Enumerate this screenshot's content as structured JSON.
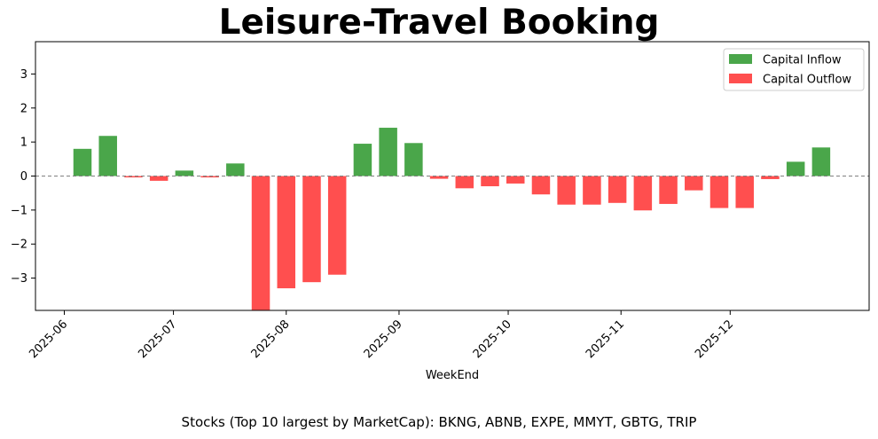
{
  "title": "Leisure-Travel Booking",
  "footnote": "Stocks (Top 10 largest by MarketCap): BKNG, ABNB, EXPE, MMYT, GBTG, TRIP",
  "colors": {
    "inflow": "#4aa64a",
    "outflow": "#ff4f4f",
    "zero_line": "#808080"
  },
  "chart_data": {
    "type": "bar",
    "title": "Leisure-Travel Booking",
    "xlabel": "WeekEnd",
    "ylabel": "",
    "ylim": [
      -3.95,
      3.95
    ],
    "yticks": [
      -3,
      -2,
      -1,
      0,
      1,
      2,
      3
    ],
    "ytick_labels": [
      "−3",
      "−2",
      "−1",
      "0",
      "1",
      "2",
      "3"
    ],
    "xticks": [
      "2025-06",
      "2025-07",
      "2025-08",
      "2025-09",
      "2025-10",
      "2025-11",
      "2025-12"
    ],
    "legend": {
      "position": "top-right",
      "entries": [
        "Capital Inflow",
        "Capital Outflow"
      ]
    },
    "x": [
      "2025-06-06",
      "2025-06-13",
      "2025-06-20",
      "2025-06-27",
      "2025-07-04",
      "2025-07-11",
      "2025-07-18",
      "2025-07-25",
      "2025-08-01",
      "2025-08-08",
      "2025-08-15",
      "2025-08-22",
      "2025-08-29",
      "2025-09-05",
      "2025-09-12",
      "2025-09-19",
      "2025-09-26",
      "2025-10-03",
      "2025-10-10",
      "2025-10-17",
      "2025-10-24",
      "2025-10-31",
      "2025-11-07",
      "2025-11-14",
      "2025-11-21",
      "2025-11-28",
      "2025-12-05",
      "2025-12-12",
      "2025-12-19",
      "2025-12-26"
    ],
    "values": [
      0.8,
      1.18,
      -0.04,
      -0.14,
      0.16,
      -0.04,
      0.37,
      -3.95,
      -3.3,
      -3.12,
      -2.9,
      0.95,
      1.42,
      0.97,
      -0.08,
      -0.36,
      -0.3,
      -0.22,
      -0.54,
      -0.84,
      -0.84,
      -0.79,
      -1.01,
      -0.82,
      -0.42,
      -0.94,
      -0.94,
      -0.09,
      0.42,
      0.84
    ]
  }
}
